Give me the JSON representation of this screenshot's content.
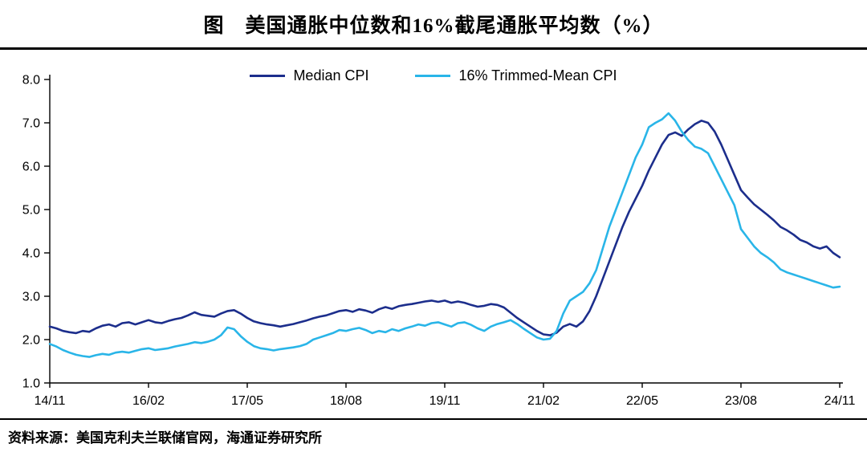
{
  "title": {
    "text": "图　美国通胀中位数和16%截尾通胀平均数（%）"
  },
  "footer": {
    "source": "资料来源：美国克利夫兰联储官网，海通证券研究所"
  },
  "colors": {
    "median_cpi": "#1c2e8c",
    "trimmed_mean_cpi": "#29b5e8",
    "axis": "#000000",
    "background": "#ffffff"
  },
  "chart_data": {
    "type": "line",
    "title": "美国通胀中位数和16%截尾通胀平均数（%）",
    "xlabel": "",
    "ylabel": "",
    "ylim": [
      1.0,
      8.0
    ],
    "yticks": [
      1.0,
      2.0,
      3.0,
      4.0,
      5.0,
      6.0,
      7.0,
      8.0
    ],
    "ytick_labels": [
      "1.0",
      "2.0",
      "3.0",
      "4.0",
      "5.0",
      "6.0",
      "7.0",
      "8.0"
    ],
    "grid": false,
    "legend_position": "top-center",
    "x_count": 121,
    "x_start": "2014-11",
    "x_end": "2024-11",
    "x_frequency": "monthly",
    "x_tick_indices": [
      0,
      15,
      30,
      45,
      60,
      75,
      90,
      105,
      120
    ],
    "x_tick_labels": [
      "14/11",
      "16/02",
      "17/05",
      "18/08",
      "19/11",
      "21/02",
      "22/05",
      "23/08",
      "24/11"
    ],
    "series": [
      {
        "name": "Median CPI",
        "color": "#1c2e8c",
        "values": [
          2.3,
          2.26,
          2.2,
          2.17,
          2.15,
          2.2,
          2.18,
          2.26,
          2.32,
          2.35,
          2.3,
          2.38,
          2.4,
          2.35,
          2.4,
          2.45,
          2.4,
          2.38,
          2.43,
          2.47,
          2.5,
          2.56,
          2.63,
          2.57,
          2.55,
          2.53,
          2.6,
          2.66,
          2.68,
          2.6,
          2.5,
          2.42,
          2.38,
          2.35,
          2.33,
          2.3,
          2.33,
          2.36,
          2.4,
          2.44,
          2.49,
          2.53,
          2.56,
          2.61,
          2.66,
          2.68,
          2.64,
          2.7,
          2.67,
          2.62,
          2.7,
          2.75,
          2.71,
          2.77,
          2.8,
          2.82,
          2.85,
          2.88,
          2.9,
          2.87,
          2.9,
          2.85,
          2.88,
          2.85,
          2.8,
          2.76,
          2.78,
          2.82,
          2.8,
          2.74,
          2.62,
          2.5,
          2.4,
          2.3,
          2.2,
          2.12,
          2.1,
          2.16,
          2.3,
          2.36,
          2.3,
          2.42,
          2.66,
          3.0,
          3.4,
          3.8,
          4.2,
          4.6,
          4.95,
          5.25,
          5.55,
          5.9,
          6.2,
          6.5,
          6.72,
          6.78,
          6.7,
          6.85,
          6.97,
          7.05,
          7.0,
          6.8,
          6.5,
          6.15,
          5.8,
          5.45,
          5.28,
          5.12,
          5.0,
          4.88,
          4.75,
          4.6,
          4.52,
          4.42,
          4.3,
          4.24,
          4.15,
          4.1,
          4.15,
          4.0,
          3.9
        ]
      },
      {
        "name": "16% Trimmed-Mean CPI",
        "color": "#29b5e8",
        "values": [
          1.9,
          1.84,
          1.76,
          1.7,
          1.65,
          1.62,
          1.6,
          1.64,
          1.67,
          1.65,
          1.7,
          1.72,
          1.7,
          1.74,
          1.78,
          1.8,
          1.76,
          1.78,
          1.8,
          1.84,
          1.87,
          1.9,
          1.94,
          1.92,
          1.95,
          2.0,
          2.1,
          2.28,
          2.24,
          2.08,
          1.95,
          1.85,
          1.8,
          1.78,
          1.75,
          1.78,
          1.8,
          1.82,
          1.85,
          1.9,
          2.0,
          2.05,
          2.1,
          2.15,
          2.22,
          2.2,
          2.24,
          2.27,
          2.22,
          2.15,
          2.2,
          2.17,
          2.24,
          2.2,
          2.26,
          2.3,
          2.35,
          2.32,
          2.38,
          2.4,
          2.35,
          2.3,
          2.38,
          2.4,
          2.34,
          2.26,
          2.2,
          2.3,
          2.36,
          2.4,
          2.45,
          2.36,
          2.25,
          2.15,
          2.05,
          2.0,
          2.02,
          2.2,
          2.6,
          2.9,
          3.0,
          3.1,
          3.3,
          3.6,
          4.1,
          4.6,
          5.0,
          5.4,
          5.8,
          6.2,
          6.5,
          6.9,
          7.0,
          7.08,
          7.22,
          7.05,
          6.8,
          6.6,
          6.45,
          6.4,
          6.3,
          6.0,
          5.7,
          5.4,
          5.1,
          4.55,
          4.35,
          4.15,
          4.0,
          3.9,
          3.78,
          3.62,
          3.55,
          3.5,
          3.45,
          3.4,
          3.35,
          3.3,
          3.25,
          3.2,
          3.22
        ]
      }
    ]
  }
}
